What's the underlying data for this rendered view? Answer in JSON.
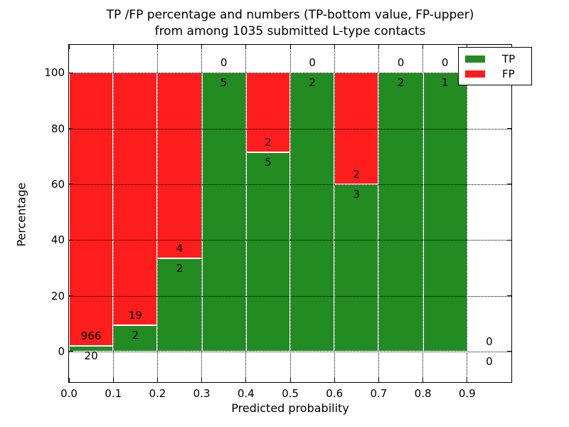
{
  "chart_data": {
    "type": "bar",
    "stacked": true,
    "title_lines": [
      "TP /FP percentage and numbers (TP-bottom value, FP-upper)",
      "from among 1035 submitted L-type contacts"
    ],
    "xlabel": "Predicted probability",
    "ylabel": "Percentage",
    "xlim": [
      0.0,
      1.0
    ],
    "ylim": [
      -11,
      110
    ],
    "grid": "dotted, drawn over bars",
    "legend_position": "upper right",
    "bar_edge_color": "#ffffff",
    "bin_edges": [
      0.0,
      0.1,
      0.2,
      0.3,
      0.4,
      0.5,
      0.6,
      0.7,
      0.8,
      0.9,
      1.0
    ],
    "xticks": [
      "0.0",
      "0.1",
      "0.2",
      "0.3",
      "0.4",
      "0.5",
      "0.6",
      "0.7",
      "0.8",
      "0.9"
    ],
    "yticks": [
      0,
      20,
      40,
      60,
      80,
      100
    ],
    "series": [
      {
        "name": "TP",
        "color": "#228b22",
        "counts": [
          20,
          2,
          2,
          5,
          5,
          2,
          3,
          2,
          1,
          0
        ],
        "pct_of_bar": [
          2.0,
          9.5,
          33.3,
          100.0,
          71.4,
          100.0,
          60.0,
          100.0,
          100.0,
          0.0
        ]
      },
      {
        "name": "FP",
        "color": "#fd1d1d",
        "counts": [
          966,
          19,
          4,
          0,
          2,
          0,
          2,
          0,
          0,
          0
        ],
        "pct_of_bar": [
          98.0,
          90.5,
          66.7,
          0.0,
          28.6,
          0.0,
          40.0,
          0.0,
          0.0,
          0.0
        ]
      }
    ],
    "total_contacts_note": "1035"
  },
  "legend": {
    "entries": [
      {
        "label": "TP",
        "color": "#228b22"
      },
      {
        "label": "FP",
        "color": "#fd1d1d"
      }
    ]
  }
}
